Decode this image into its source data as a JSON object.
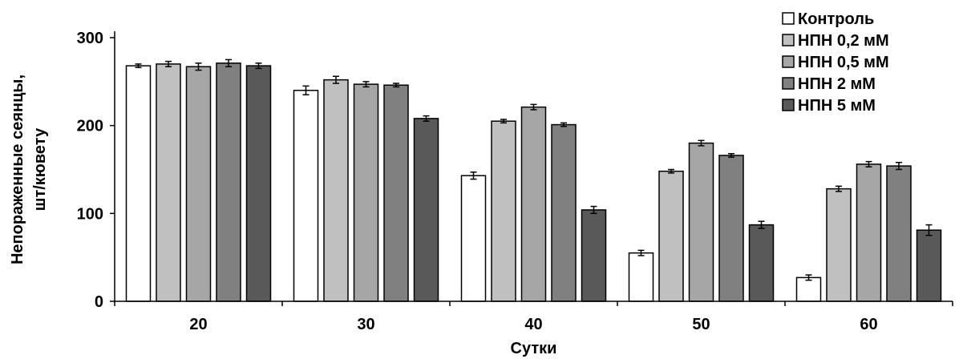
{
  "chart_data": {
    "type": "bar",
    "xlabel": "Сутки",
    "ylabel_lines": [
      "Непораженные сеянцы,",
      "шт/кювету"
    ],
    "ylim": [
      0,
      300
    ],
    "yticks": [
      "0",
      "100",
      "200",
      "300"
    ],
    "categories": [
      "20",
      "30",
      "40",
      "50",
      "60"
    ],
    "legend_position": "top-right",
    "error_bars": true,
    "series": [
      {
        "name": "Контроль",
        "color": "#ffffff",
        "values": [
          268,
          240,
          143,
          55,
          27
        ],
        "errors": [
          2,
          5,
          4,
          3,
          3
        ]
      },
      {
        "name": "НПН 0,2 мМ",
        "color": "#c0c0c0",
        "values": [
          270,
          252,
          205,
          148,
          128
        ],
        "errors": [
          3,
          4,
          2,
          2,
          3
        ]
      },
      {
        "name": "НПН 0,5 мМ",
        "color": "#a6a6a6",
        "values": [
          267,
          247,
          221,
          180,
          156
        ],
        "errors": [
          4,
          3,
          3,
          3,
          3
        ]
      },
      {
        "name": "НПН 2 мМ",
        "color": "#808080",
        "values": [
          271,
          246,
          201,
          166,
          154
        ],
        "errors": [
          4,
          2,
          2,
          2,
          4
        ]
      },
      {
        "name": "НПН 5 мМ",
        "color": "#595959",
        "values": [
          268,
          208,
          104,
          87,
          81
        ],
        "errors": [
          3,
          3,
          4,
          4,
          6
        ]
      }
    ]
  }
}
